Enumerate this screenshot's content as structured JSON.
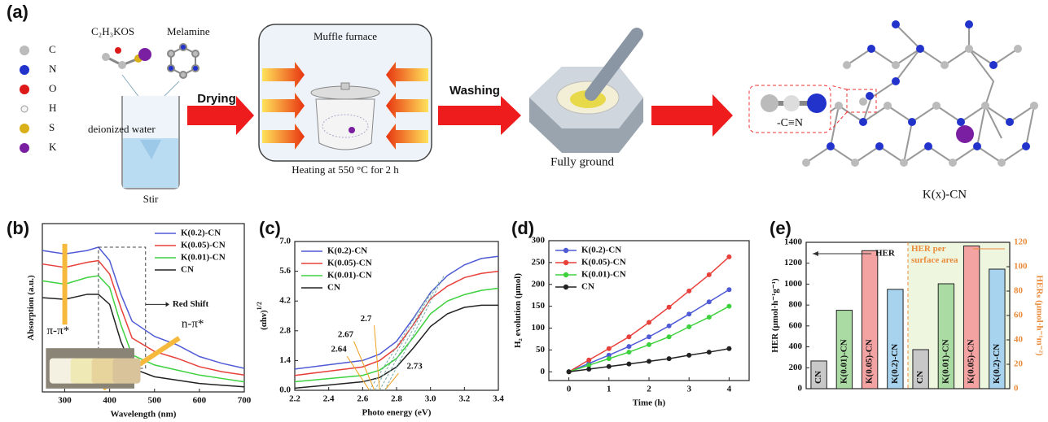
{
  "panel_labels": [
    "(a)",
    "(b)",
    "(c)",
    "(d)",
    "(e)"
  ],
  "schematic": {
    "reagent_1": "C₂H₃KOS",
    "reagent_2": "Melamine",
    "element_legend": [
      "C",
      "N",
      "O",
      "H",
      "S",
      "K"
    ],
    "solvent": "deionized water",
    "step_1": "Stir",
    "arrow_1": "Drying",
    "furnace": "Muffle furnace",
    "step_2": "Heating at 550 °C for 2 h",
    "arrow_2": "Washing",
    "step_3": "Fully ground",
    "group": "-C≡N",
    "product": "K(x)-CN"
  },
  "chart_data": [
    {
      "type": "line",
      "xlabel": "Wavelength (nm)",
      "ylabel": "Absorption (a.u.)",
      "x": [
        250,
        300,
        350,
        375,
        400,
        425,
        450,
        500,
        550,
        600,
        650,
        700
      ],
      "xlim": [
        250,
        700
      ],
      "xticks": [
        300,
        400,
        500,
        600,
        700
      ],
      "ylim": [
        0,
        1
      ],
      "legend": "upper right",
      "annotations": [
        "Red Shift",
        "π-π*",
        "n-π*"
      ],
      "series": [
        {
          "name": "K(0.2)-CN",
          "color": "#4f5bd5",
          "values": [
            0.84,
            0.82,
            0.84,
            0.86,
            0.78,
            0.58,
            0.42,
            0.33,
            0.28,
            0.21,
            0.17,
            0.14
          ]
        },
        {
          "name": "K(0.05)-CN",
          "color": "#e8403a",
          "values": [
            0.76,
            0.74,
            0.77,
            0.78,
            0.7,
            0.5,
            0.32,
            0.24,
            0.2,
            0.15,
            0.12,
            0.1
          ]
        },
        {
          "name": "K(0.01)-CN",
          "color": "#3ed13e",
          "values": [
            0.66,
            0.64,
            0.68,
            0.69,
            0.62,
            0.4,
            0.22,
            0.16,
            0.13,
            0.1,
            0.08,
            0.06
          ]
        },
        {
          "name": "CN",
          "color": "#222222",
          "values": [
            0.56,
            0.55,
            0.58,
            0.58,
            0.52,
            0.3,
            0.14,
            0.09,
            0.07,
            0.05,
            0.04,
            0.03
          ]
        }
      ]
    },
    {
      "type": "line",
      "xlabel": "Photo energy (eV)",
      "ylabel": "(αhν)",
      "ylabel_sup": "1/2",
      "x": [
        2.2,
        2.4,
        2.6,
        2.7,
        2.8,
        2.9,
        3.0,
        3.1,
        3.2,
        3.3,
        3.4
      ],
      "xlim": [
        2.2,
        3.4
      ],
      "xticks": [
        2.2,
        2.4,
        2.6,
        2.8,
        {
          "value": 3,
          "label": "3.0"
        },
        3.2,
        3.4
      ],
      "ylim": [
        0,
        7
      ],
      "yticks": [
        {
          "value": 0,
          "label": "0.0"
        },
        1.4,
        2.8,
        4.2,
        5.6,
        {
          "value": 7,
          "label": "7.0"
        }
      ],
      "legend": "upper left",
      "band_gaps": [
        2.64,
        2.67,
        2.7,
        2.73
      ],
      "series": [
        {
          "name": "K(0.2)-CN",
          "color": "#4f5bd5",
          "values": [
            1.0,
            1.2,
            1.4,
            1.7,
            2.3,
            3.4,
            4.6,
            5.4,
            5.9,
            6.2,
            6.3
          ]
        },
        {
          "name": "K(0.05)-CN",
          "color": "#e8403a",
          "values": [
            0.7,
            0.9,
            1.1,
            1.4,
            2.0,
            3.1,
            4.3,
            4.9,
            5.3,
            5.5,
            5.6
          ]
        },
        {
          "name": "K(0.01)-CN",
          "color": "#3ed13e",
          "values": [
            0.4,
            0.55,
            0.7,
            0.95,
            1.5,
            2.5,
            3.6,
            4.2,
            4.5,
            4.7,
            4.8
          ]
        },
        {
          "name": "CN",
          "color": "#222222",
          "values": [
            0.1,
            0.25,
            0.4,
            0.6,
            1.1,
            2.0,
            3.0,
            3.6,
            3.9,
            4.0,
            4.0
          ]
        }
      ]
    },
    {
      "type": "line",
      "markers": true,
      "xlabel": "Time (h)",
      "ylabel": "H₂ evolution (μmol)",
      "x": [
        0,
        0.5,
        1,
        1.5,
        2,
        2.5,
        3,
        3.5,
        4
      ],
      "xlim": [
        -0.5,
        4.5
      ],
      "xticks": [
        0,
        1,
        2,
        3,
        4
      ],
      "ylim": [
        -20,
        300
      ],
      "yticks": [
        0,
        50,
        100,
        150,
        200,
        250,
        300
      ],
      "legend": "upper left",
      "series": [
        {
          "name": "K(0.2)-CN",
          "color": "#4f5bd5",
          "values": [
            0,
            19,
            38,
            58,
            80,
            105,
            132,
            160,
            188
          ]
        },
        {
          "name": "K(0.05)-CN",
          "color": "#e8403a",
          "values": [
            0,
            27,
            53,
            80,
            113,
            148,
            185,
            222,
            263
          ]
        },
        {
          "name": "K(0.01)-CN",
          "color": "#3ed13e",
          "values": [
            0,
            15,
            30,
            45,
            62,
            80,
            103,
            125,
            150
          ]
        },
        {
          "name": "CN",
          "color": "#222222",
          "values": [
            0,
            6,
            12,
            18,
            24,
            30,
            38,
            45,
            53
          ]
        }
      ]
    },
    {
      "type": "bar",
      "ylabel": "HER (μmol·h⁻¹g⁻¹)",
      "y2label": "HERₛ (μmol·h⁻¹m⁻²)",
      "categories": [
        "CN",
        "K(0.01)-CN",
        "K(0.05)-CN",
        "K(0.2)-CN",
        "CN",
        "K(0.01)-CN",
        "K(0.05)-CN",
        "K(0.2)-CN"
      ],
      "colors": [
        "#c8c8c8",
        "#a9dba3",
        "#f4a3a3",
        "#a7d3ef",
        "#c8c8c8",
        "#a9dba3",
        "#f4a3a3",
        "#a7d3ef"
      ],
      "ylim": [
        0,
        1400
      ],
      "yticks": [
        0,
        200,
        400,
        600,
        800,
        1000,
        1200,
        1400
      ],
      "y2lim": [
        0,
        120
      ],
      "y2ticks": [
        0,
        20,
        40,
        60,
        80,
        100,
        120
      ],
      "series": [
        {
          "name": "HER",
          "values": [
            265,
            750,
            1320,
            950,
            null,
            null,
            null,
            null
          ]
        },
        {
          "name": "HER per surface area",
          "axis": "y2",
          "values": [
            null,
            null,
            null,
            null,
            32,
            86,
            117,
            98
          ]
        }
      ]
    }
  ]
}
